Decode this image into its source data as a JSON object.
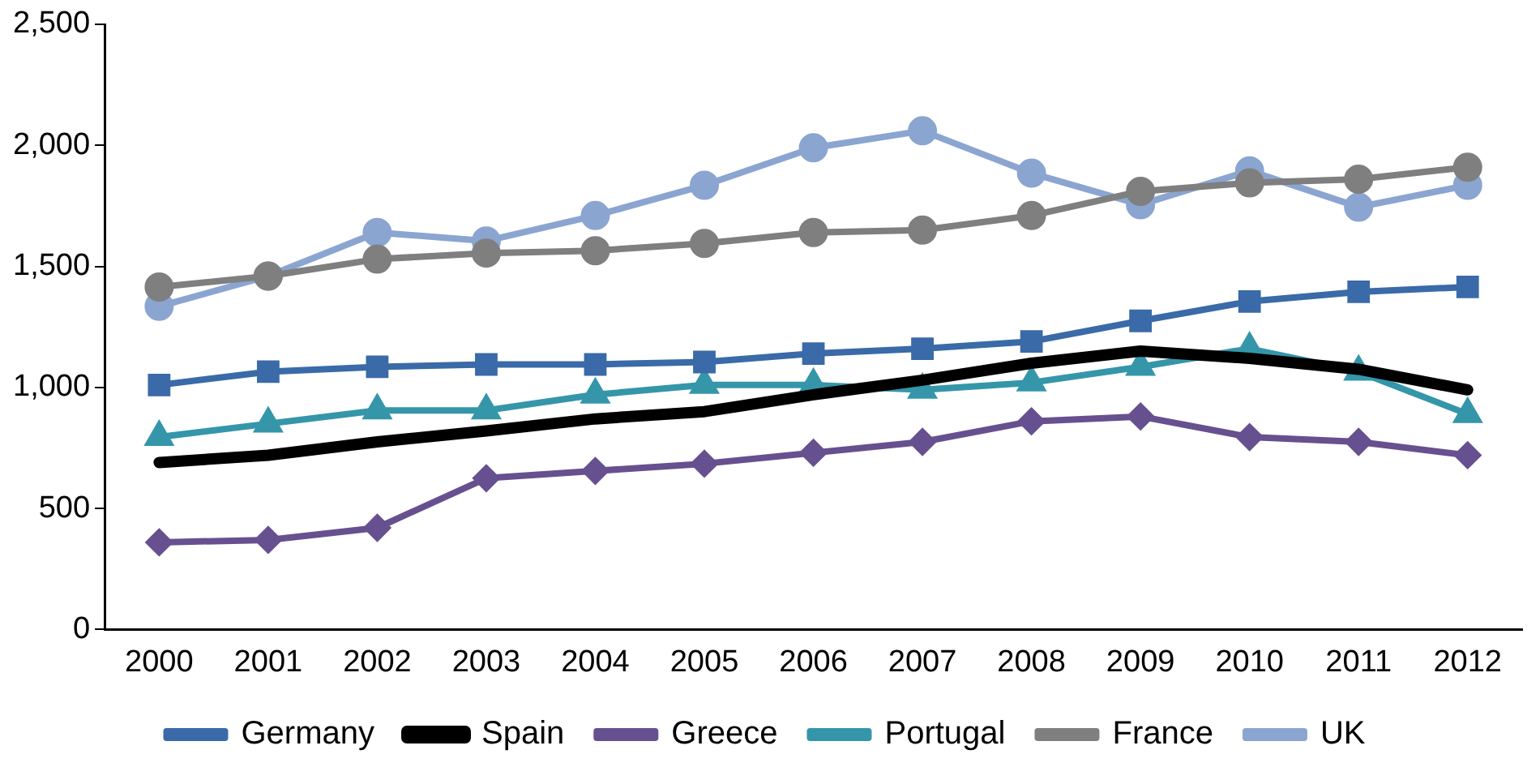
{
  "chart_data": {
    "type": "line",
    "categories": [
      "2000",
      "2001",
      "2002",
      "2003",
      "2004",
      "2005",
      "2006",
      "2007",
      "2008",
      "2009",
      "2010",
      "2011",
      "2012"
    ],
    "series": [
      {
        "name": "Germany",
        "color": "#3a6aa8",
        "marker": "square",
        "values": [
          1010,
          1065,
          1085,
          1095,
          1095,
          1105,
          1140,
          1160,
          1190,
          1275,
          1355,
          1395,
          1415
        ]
      },
      {
        "name": "Spain",
        "color": "#000000",
        "marker": "none",
        "values": [
          690,
          720,
          775,
          820,
          870,
          900,
          970,
          1030,
          1100,
          1150,
          1120,
          1075,
          990
        ]
      },
      {
        "name": "Greece",
        "color": "#67508f",
        "marker": "diamond",
        "values": [
          360,
          370,
          420,
          625,
          655,
          685,
          730,
          775,
          860,
          880,
          795,
          775,
          720
        ]
      },
      {
        "name": "Portugal",
        "color": "#3596aa",
        "marker": "triangle",
        "values": [
          795,
          850,
          905,
          905,
          970,
          1010,
          1010,
          990,
          1020,
          1085,
          1160,
          1065,
          890
        ]
      },
      {
        "name": "France",
        "color": "#7f7f7f",
        "marker": "circle",
        "values": [
          1415,
          1460,
          1530,
          1555,
          1565,
          1595,
          1640,
          1650,
          1710,
          1810,
          1845,
          1860,
          1910
        ]
      },
      {
        "name": "UK",
        "color": "#8ba5d1",
        "marker": "circle",
        "values": [
          1335,
          1460,
          1640,
          1605,
          1710,
          1835,
          1990,
          2060,
          1885,
          1755,
          1895,
          1745,
          1835
        ]
      }
    ],
    "ylim": [
      0,
      2500
    ],
    "yticks": [
      0,
      500,
      {
        "value": 1000,
        "label": "1,000"
      },
      {
        "value": 1500,
        "label": "1,500"
      },
      {
        "value": 2000,
        "label": "2,000"
      },
      {
        "value": 2500,
        "label": "2,500"
      }
    ],
    "grid": false,
    "legend": "bottom"
  }
}
